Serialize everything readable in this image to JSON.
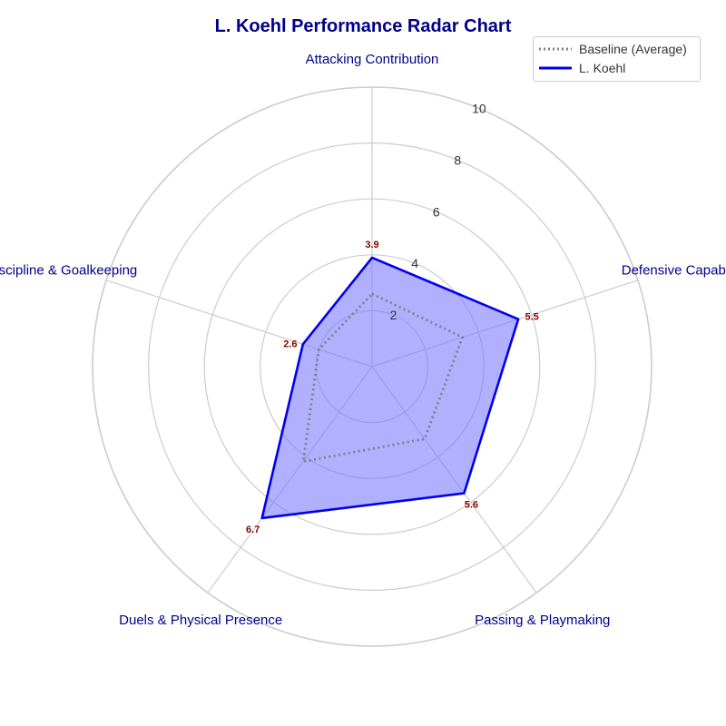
{
  "title": "L. Koehl Performance Radar Chart",
  "legend": {
    "baseline_label": "Baseline (Average)",
    "player_label": "L. Koehl"
  },
  "colors": {
    "title": "#00008b",
    "axis_label": "#00008b",
    "value_label": "#8b0000",
    "player_line": "#0000ee",
    "player_fill": "#7777ff",
    "baseline_line": "#808080",
    "grid": "#cccccc"
  },
  "chart_data": {
    "type": "radar",
    "title": "L. Koehl Performance Radar Chart",
    "categories": [
      "Attacking Contribution",
      "Defensive Capability",
      "Passing & Playmaking",
      "Duels & Physical Presence",
      "Discipline & Goalkeeping"
    ],
    "rlim": [
      0,
      10
    ],
    "rticks": [
      2,
      4,
      6,
      8,
      10
    ],
    "grid": true,
    "legend_position": "top-right",
    "series": [
      {
        "name": "Baseline (Average)",
        "style": "dotted",
        "values": [
          2.6,
          3.4,
          3.2,
          4.2,
          2.0
        ]
      },
      {
        "name": "L. Koehl",
        "style": "solid-filled",
        "values": [
          3.9,
          5.5,
          5.6,
          6.7,
          2.6
        ]
      }
    ],
    "value_labels": [
      "3.9",
      "5.5",
      "5.6",
      "6.7",
      "2.6"
    ]
  }
}
